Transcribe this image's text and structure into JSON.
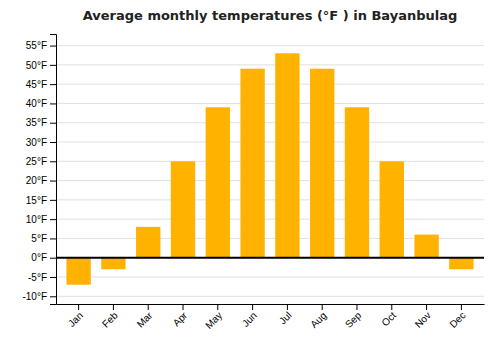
{
  "chart_data": {
    "type": "bar",
    "title": "Average monthly temperatures (°F ) in Bayanbulag",
    "categories": [
      "Jan",
      "Feb",
      "Mar",
      "Apr",
      "May",
      "Jun",
      "Jul",
      "Aug",
      "Sep",
      "Oct",
      "Nov",
      "Dec"
    ],
    "values": [
      -7,
      -3,
      8,
      25,
      39,
      49,
      53,
      49,
      39,
      25,
      6,
      -3
    ],
    "color": "#FFB300",
    "ylim": [
      -12,
      58
    ],
    "yticks": [
      {
        "value": -10,
        "label": "-10°F"
      },
      {
        "value": -5,
        "label": "-5°F"
      },
      {
        "value": 0,
        "label": "0°F"
      },
      {
        "value": 5,
        "label": "5°F"
      },
      {
        "value": 10,
        "label": "10°F"
      },
      {
        "value": 15,
        "label": "15°F"
      },
      {
        "value": 20,
        "label": "20°F"
      },
      {
        "value": 25,
        "label": "25°F"
      },
      {
        "value": 30,
        "label": "30°F"
      },
      {
        "value": 35,
        "label": "35°F"
      },
      {
        "value": 40,
        "label": "40°F"
      },
      {
        "value": 45,
        "label": "45°F"
      },
      {
        "value": 50,
        "label": "50°F"
      },
      {
        "value": 55,
        "label": "55°F"
      }
    ],
    "grid": true
  }
}
